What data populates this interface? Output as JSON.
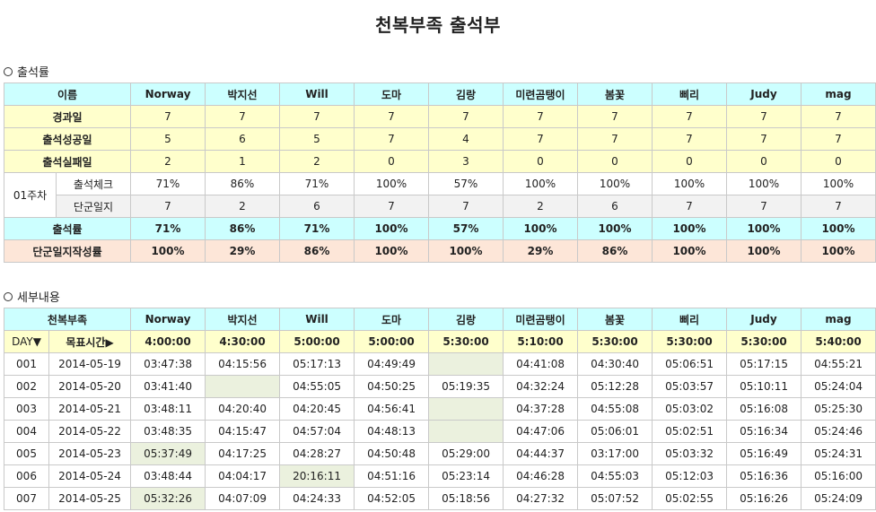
{
  "title": "천복부족 출석부",
  "summary": {
    "section_label": "출석률",
    "header_label": "이름",
    "names": [
      "Norway",
      "박지선",
      "Will",
      "도마",
      "김랑",
      "미련곰탱이",
      "봄꽃",
      "삐리",
      "Judy",
      "mag"
    ],
    "rows": [
      {
        "label": "경과일",
        "values": [
          "7",
          "7",
          "7",
          "7",
          "7",
          "7",
          "7",
          "7",
          "7",
          "7"
        ]
      },
      {
        "label": "출석성공일",
        "values": [
          "5",
          "6",
          "5",
          "7",
          "4",
          "7",
          "7",
          "7",
          "7",
          "7"
        ]
      },
      {
        "label": "출석실패일",
        "values": [
          "2",
          "1",
          "2",
          "0",
          "3",
          "0",
          "0",
          "0",
          "0",
          "0"
        ]
      }
    ],
    "week_label": "01주차",
    "week_rows": [
      {
        "label": "출석체크",
        "values": [
          "71%",
          "86%",
          "71%",
          "100%",
          "57%",
          "100%",
          "100%",
          "100%",
          "100%",
          "100%"
        ]
      },
      {
        "label": "단군일지",
        "values": [
          "7",
          "2",
          "6",
          "7",
          "7",
          "2",
          "6",
          "7",
          "7",
          "7"
        ]
      }
    ],
    "rate_row": {
      "label": "출석률",
      "values": [
        "71%",
        "86%",
        "71%",
        "100%",
        "57%",
        "100%",
        "100%",
        "100%",
        "100%",
        "100%"
      ]
    },
    "journal_row": {
      "label": "단군일지작성률",
      "values": [
        "100%",
        "29%",
        "86%",
        "100%",
        "100%",
        "29%",
        "86%",
        "100%",
        "100%",
        "100%"
      ]
    }
  },
  "detail": {
    "section_label": "세부내용",
    "group_label": "천복부족",
    "day_label": "DAY▼",
    "target_label": "목표시간▶",
    "targets": [
      "4:00:00",
      "4:30:00",
      "5:00:00",
      "5:00:00",
      "5:30:00",
      "5:10:00",
      "5:30:00",
      "5:30:00",
      "5:30:00",
      "5:40:00"
    ],
    "rows": [
      {
        "day": "001",
        "date": "2014-05-19",
        "times": [
          "03:47:38",
          "04:15:56",
          "05:17:13",
          "04:49:49",
          "",
          "04:41:08",
          "04:30:40",
          "05:06:51",
          "05:17:15",
          "04:55:21"
        ],
        "miss": [
          4
        ]
      },
      {
        "day": "002",
        "date": "2014-05-20",
        "times": [
          "03:41:40",
          "",
          "04:55:05",
          "04:50:25",
          "05:19:35",
          "04:32:24",
          "05:12:28",
          "05:03:57",
          "05:10:11",
          "05:24:04"
        ],
        "miss": [
          1
        ]
      },
      {
        "day": "003",
        "date": "2014-05-21",
        "times": [
          "03:48:11",
          "04:20:40",
          "04:20:45",
          "04:56:41",
          "",
          "04:37:28",
          "04:55:08",
          "05:03:02",
          "05:16:08",
          "05:25:30"
        ],
        "miss": [
          4
        ]
      },
      {
        "day": "004",
        "date": "2014-05-22",
        "times": [
          "03:48:35",
          "04:15:47",
          "04:57:04",
          "04:48:13",
          "",
          "04:47:06",
          "05:06:01",
          "05:02:51",
          "05:16:34",
          "05:24:46"
        ],
        "miss": [
          4
        ]
      },
      {
        "day": "005",
        "date": "2014-05-23",
        "times": [
          "05:37:49",
          "04:17:25",
          "04:28:27",
          "04:50:48",
          "05:29:00",
          "04:44:37",
          "03:17:00",
          "05:03:32",
          "05:16:49",
          "05:24:31"
        ],
        "miss": [
          0
        ]
      },
      {
        "day": "006",
        "date": "2014-05-24",
        "times": [
          "03:48:44",
          "04:04:17",
          "20:16:11",
          "04:51:16",
          "05:23:14",
          "04:46:28",
          "04:55:03",
          "05:12:03",
          "05:16:36",
          "05:16:00"
        ],
        "miss": [
          2
        ]
      },
      {
        "day": "007",
        "date": "2014-05-25",
        "times": [
          "05:32:26",
          "04:07:09",
          "04:24:33",
          "04:52:05",
          "05:18:56",
          "04:27:32",
          "05:07:52",
          "05:02:55",
          "05:16:26",
          "05:24:09"
        ],
        "miss": [
          0
        ]
      }
    ]
  }
}
